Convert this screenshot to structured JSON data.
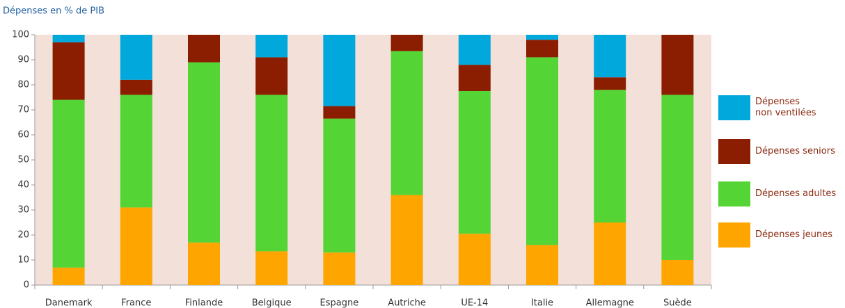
{
  "chart_data": {
    "type": "stacked_bar",
    "y_axis_label": "Dépenses en % de PIB",
    "categories": [
      "Danemark",
      "France",
      "Finlande",
      "Belgique",
      "Espagne",
      "Autriche",
      "UE-14",
      "Italie",
      "Allemagne",
      "Suède"
    ],
    "series": [
      {
        "name": "Dépenses jeunes",
        "color": "#ffa500",
        "values": [
          7,
          31,
          17,
          13.5,
          13,
          36,
          20.5,
          16,
          25,
          10
        ]
      },
      {
        "name": "Dépenses adultes",
        "color": "#55d435",
        "values": [
          67,
          45,
          72,
          62.5,
          53.5,
          57.5,
          57,
          75,
          53,
          66
        ]
      },
      {
        "name": "Dépenses seniors",
        "color": "#8b1e00",
        "values": [
          23,
          6,
          11,
          15,
          5,
          6.5,
          10.5,
          7,
          5,
          24
        ]
      },
      {
        "name": "Dépenses\nnon ventilées",
        "color": "#00a8dc",
        "values": [
          3,
          18,
          0,
          9,
          28.5,
          0,
          12,
          2,
          17,
          0
        ]
      }
    ],
    "ylim": [
      0,
      100
    ],
    "yticks": [
      0,
      10,
      20,
      30,
      40,
      50,
      60,
      70,
      80,
      90,
      100
    ],
    "legend": "right"
  }
}
